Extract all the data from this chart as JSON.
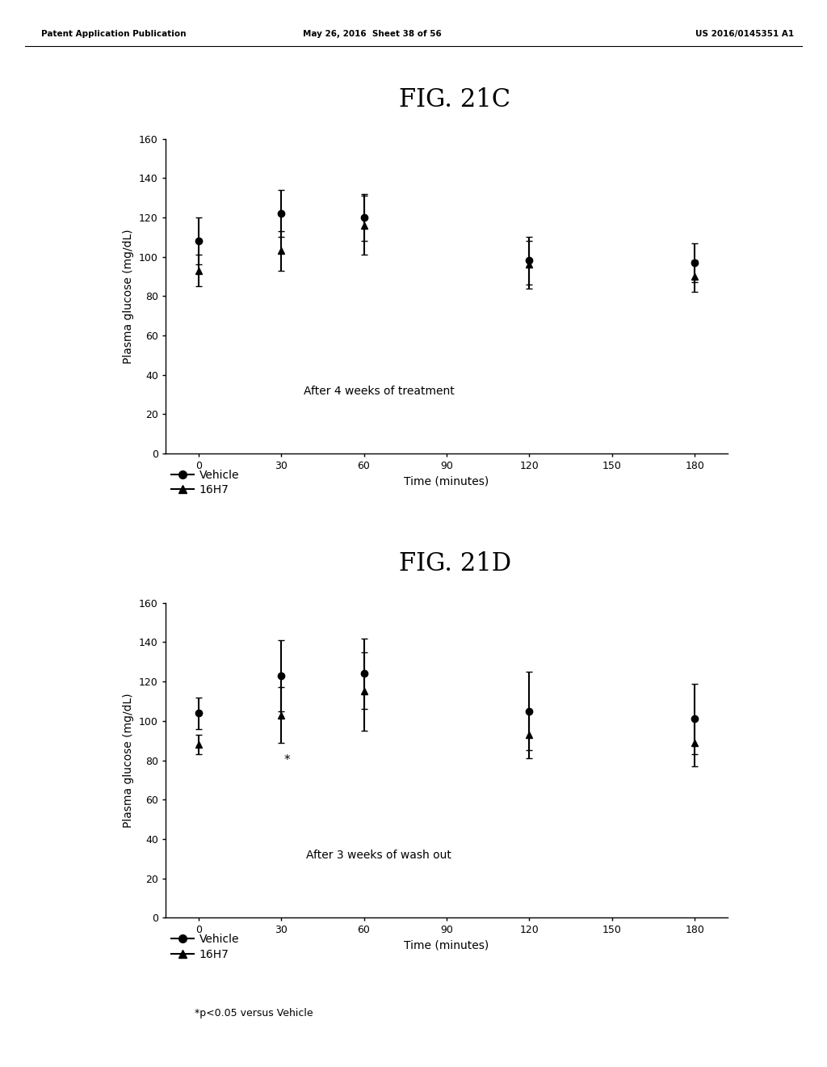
{
  "header_left": "Patent Application Publication",
  "header_mid": "May 26, 2016  Sheet 38 of 56",
  "header_right": "US 2016/0145351 A1",
  "fig_C": {
    "title": "FIG. 21C",
    "annotation": "After 4 weeks of treatment",
    "xlabel": "Time (minutes)",
    "ylabel": "Plasma glucose (mg/dL)",
    "xlim": [
      -12,
      192
    ],
    "ylim": [
      0,
      160
    ],
    "xticks": [
      0,
      30,
      60,
      90,
      120,
      150,
      180
    ],
    "yticks": [
      0,
      20,
      40,
      60,
      80,
      100,
      120,
      140,
      160
    ],
    "vehicle_x": [
      0,
      30,
      60,
      120,
      180
    ],
    "vehicle_y": [
      108,
      122,
      120,
      98,
      97
    ],
    "vehicle_yerr": [
      12,
      12,
      12,
      12,
      10
    ],
    "h16_x": [
      0,
      30,
      60,
      120,
      180
    ],
    "h16_y": [
      93,
      103,
      116,
      96,
      90
    ],
    "h16_yerr": [
      8,
      10,
      15,
      12,
      8
    ]
  },
  "fig_D": {
    "title": "FIG. 21D",
    "annotation": "After 3 weeks of wash out",
    "xlabel": "Time (minutes)",
    "ylabel": "Plasma glucose (mg/dL)",
    "xlim": [
      -12,
      192
    ],
    "ylim": [
      0,
      160
    ],
    "xticks": [
      0,
      30,
      60,
      90,
      120,
      150,
      180
    ],
    "yticks": [
      0,
      20,
      40,
      60,
      80,
      100,
      120,
      140,
      160
    ],
    "vehicle_x": [
      0,
      30,
      60,
      120,
      180
    ],
    "vehicle_y": [
      104,
      123,
      124,
      105,
      101
    ],
    "vehicle_yerr": [
      8,
      18,
      18,
      20,
      18
    ],
    "h16_x": [
      0,
      30,
      60,
      120,
      180
    ],
    "h16_y": [
      88,
      103,
      115,
      93,
      89
    ],
    "h16_yerr": [
      5,
      14,
      20,
      12,
      12
    ],
    "star_x": 30,
    "star_y": 88,
    "footnote": "*p<0.05 versus Vehicle"
  },
  "line_color": "#000000",
  "marker_vehicle": "o",
  "marker_h16": "^",
  "legend_vehicle": "Vehicle",
  "legend_h16": "16H7"
}
